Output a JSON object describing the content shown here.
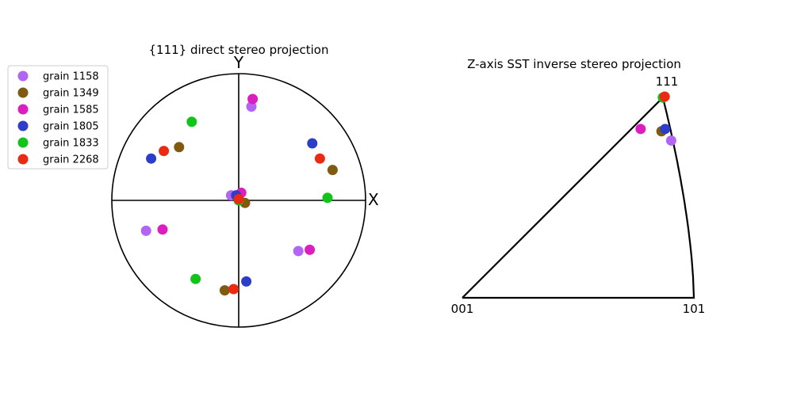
{
  "colors": {
    "grain 1158": "#b264f2",
    "grain 1349": "#7f5a0f",
    "grain 1585": "#dc1ec0",
    "grain 1805": "#2c3dc8",
    "grain 1833": "#12c41a",
    "grain 2268": "#ea2a12"
  },
  "chart_data": [
    {
      "type": "scatter",
      "title": "{111} direct stereo projection",
      "xlabel": "X",
      "ylabel": "Y",
      "xlim": [
        -1,
        1
      ],
      "ylim": [
        -1,
        1
      ],
      "legend": {
        "placement": "left",
        "entries": [
          "grain 1158",
          "grain 1349",
          "grain 1585",
          "grain 1805",
          "grain 1833",
          "grain 2268"
        ]
      },
      "series": [
        {
          "name": "grain 1158",
          "x": [
            0.1,
            -0.06,
            -0.73,
            0.47
          ],
          "y": [
            0.74,
            0.04,
            -0.24,
            -0.4
          ]
        },
        {
          "name": "grain 1349",
          "x": [
            -0.47,
            0.74,
            0.05,
            -0.11
          ],
          "y": [
            0.42,
            0.24,
            -0.02,
            -0.71
          ]
        },
        {
          "name": "grain 1585",
          "x": [
            0.11,
            0.02,
            -0.6,
            0.56
          ],
          "y": [
            0.8,
            0.06,
            -0.23,
            -0.39
          ]
        },
        {
          "name": "grain 1805",
          "x": [
            -0.69,
            0.58,
            -0.02,
            0.06
          ],
          "y": [
            0.33,
            0.45,
            0.04,
            -0.64
          ]
        },
        {
          "name": "grain 1833",
          "x": [
            -0.37,
            0.7,
            0.0,
            -0.34
          ],
          "y": [
            0.62,
            0.02,
            0.0,
            -0.62
          ]
        },
        {
          "name": "grain 2268",
          "x": [
            -0.59,
            0.64,
            0.0,
            -0.04
          ],
          "y": [
            0.39,
            0.33,
            0.01,
            -0.7
          ]
        }
      ]
    },
    {
      "type": "scatter",
      "title": "Z-axis SST inverse stereo projection",
      "corner_labels": [
        "001",
        "101",
        "111"
      ],
      "series": [
        {
          "name": "grain 1158",
          "x": [
            0.902
          ],
          "y": [
            0.68
          ]
        },
        {
          "name": "grain 1349",
          "x": [
            0.86
          ],
          "y": [
            0.72
          ]
        },
        {
          "name": "grain 1585",
          "x": [
            0.77
          ],
          "y": [
            0.73
          ]
        },
        {
          "name": "grain 1805",
          "x": [
            0.876
          ],
          "y": [
            0.73
          ]
        },
        {
          "name": "grain 1833",
          "x": [
            0.866
          ],
          "y": [
            0.866
          ]
        },
        {
          "name": "grain 2268",
          "x": [
            0.874
          ],
          "y": [
            0.87
          ]
        }
      ]
    }
  ]
}
